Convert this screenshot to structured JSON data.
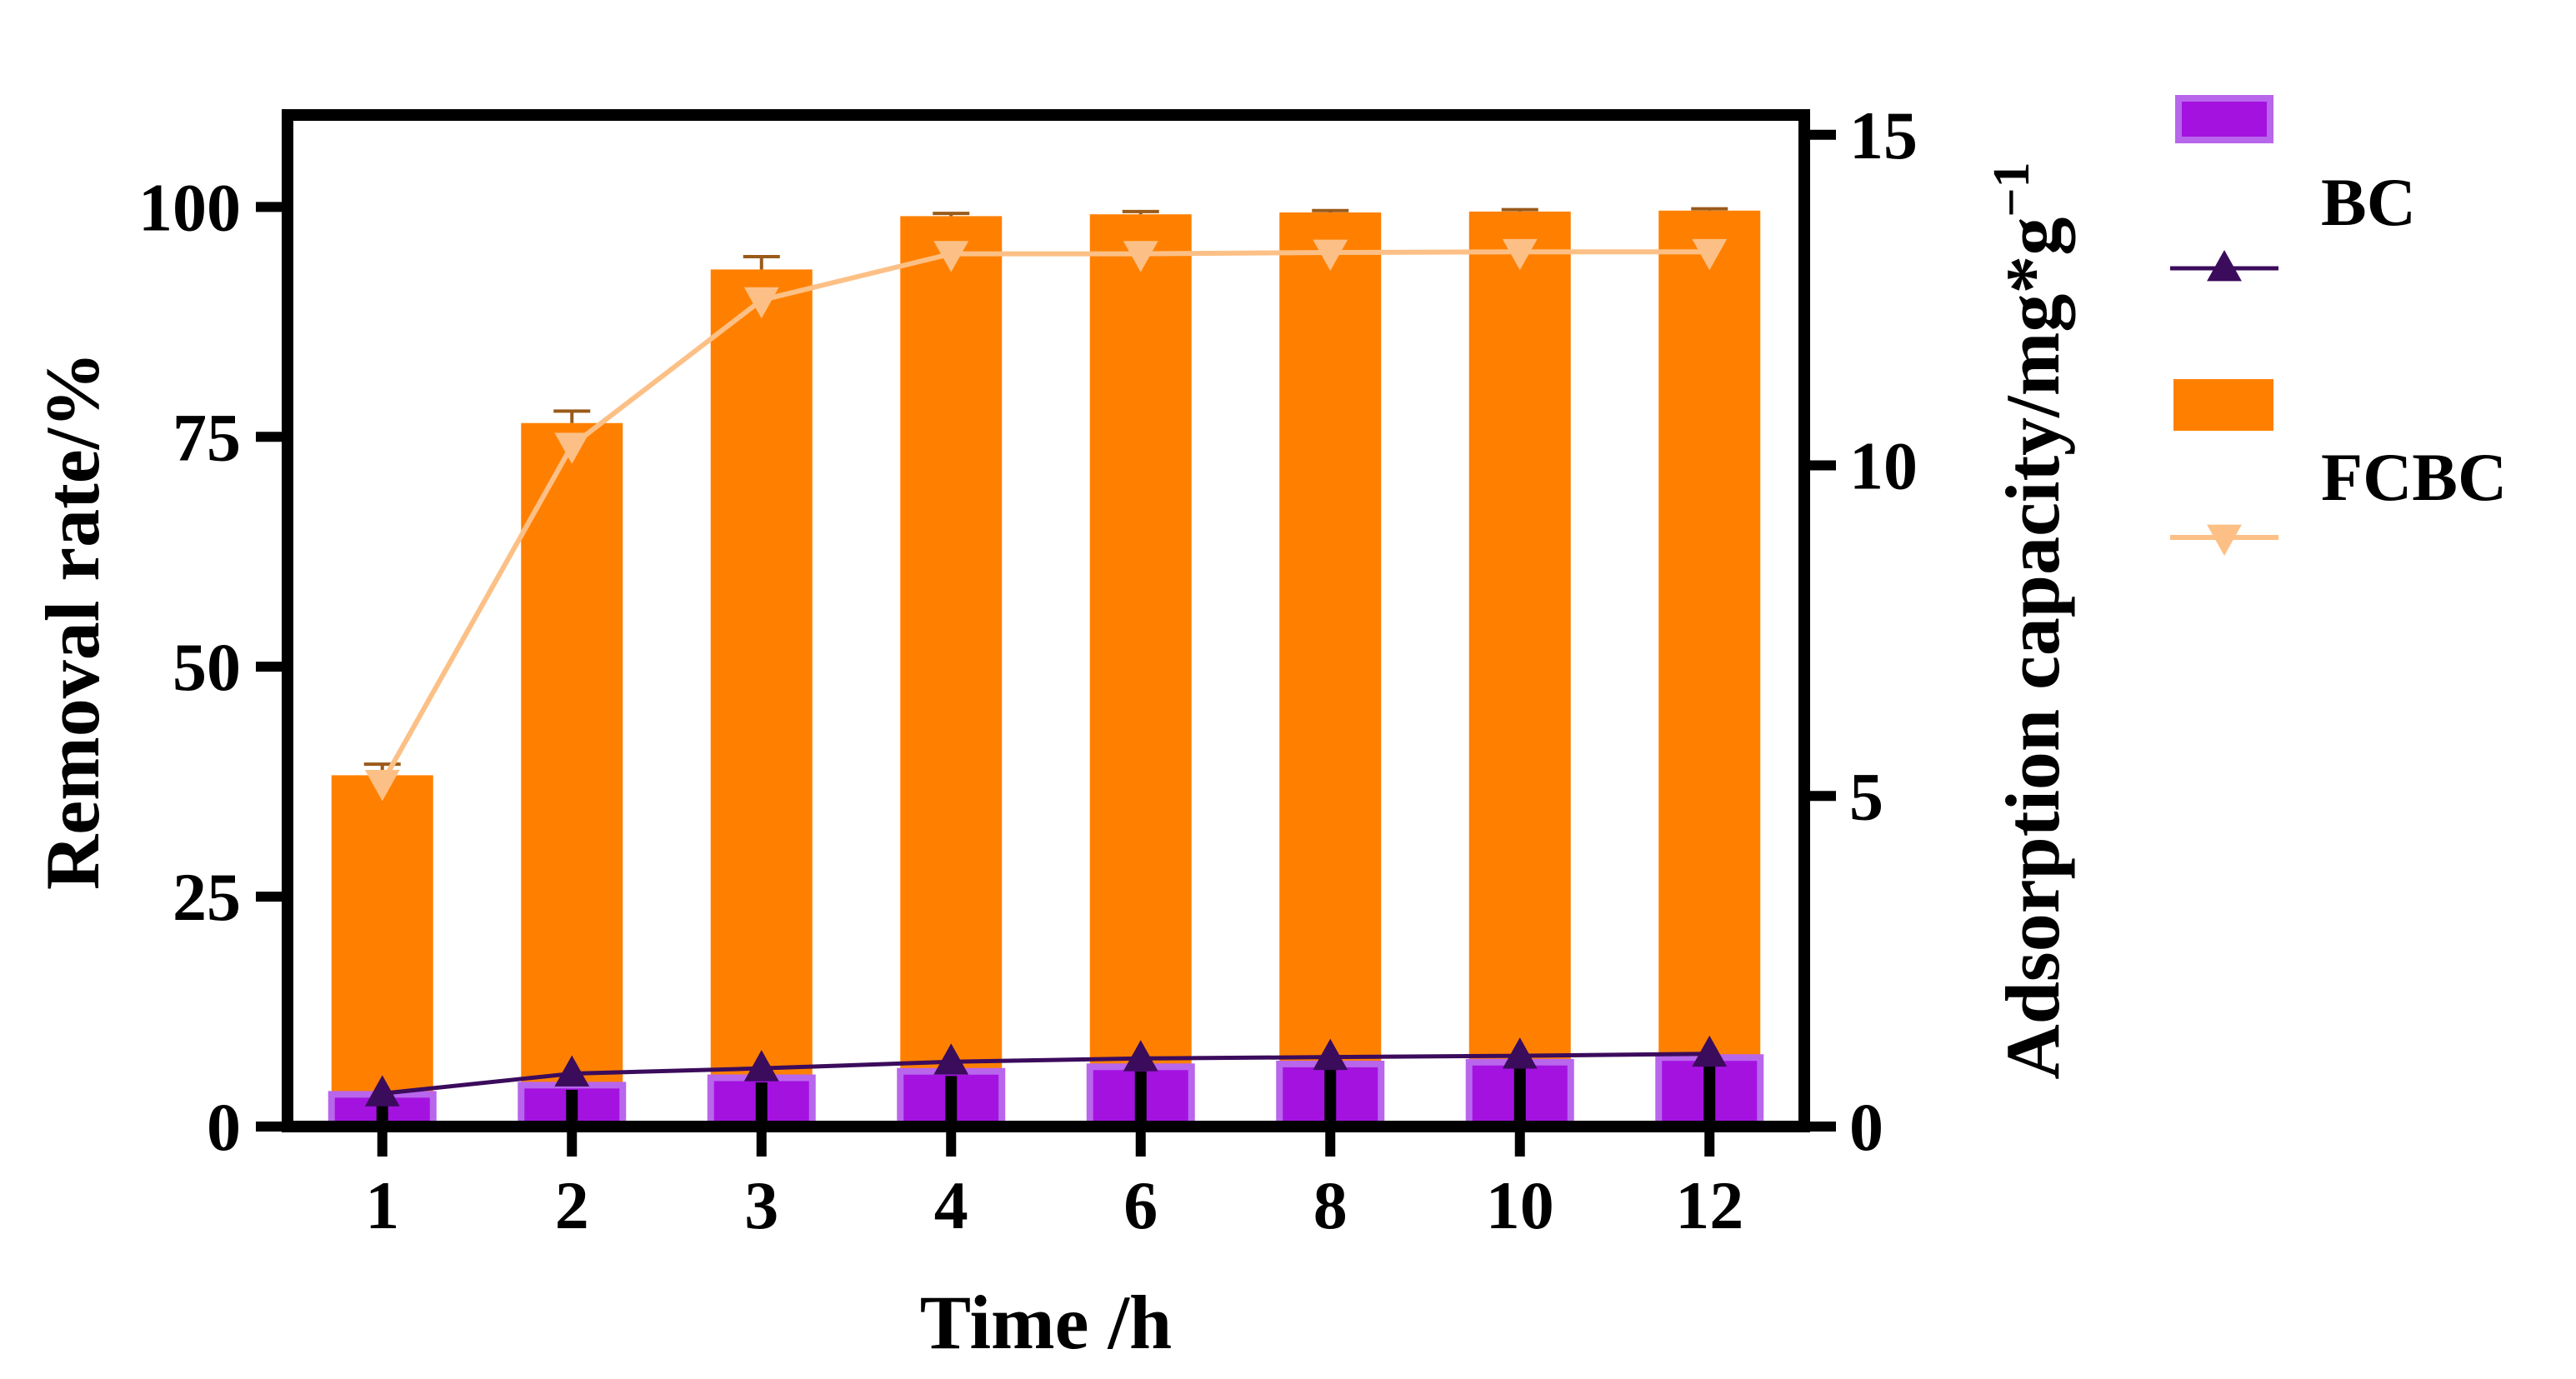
{
  "chart_data": {
    "type": "bar",
    "title": "",
    "xlabel": "Time /h",
    "ylabel": "Removal rate/%",
    "y2label_main": "Adsorption capacity/mg*g",
    "y2label_sup": "−1",
    "categories": [
      "1",
      "2",
      "3",
      "4",
      "6",
      "8",
      "10",
      "12"
    ],
    "ylim": [
      0,
      110
    ],
    "yticks": [
      "0",
      "25",
      "50",
      "75",
      "100"
    ],
    "y2lim": [
      0,
      15.3
    ],
    "y2ticks": [
      "0",
      "5",
      "10",
      "15"
    ],
    "bars": [
      {
        "name": "BC",
        "color": "#a412e0",
        "edge_color": "#b866ec",
        "values": [
          3.5,
          4.5,
          5.3,
          6.0,
          6.5,
          6.8,
          7.0,
          7.5
        ],
        "errors": [
          0.4,
          0.4,
          0.4,
          0.4,
          0.4,
          0.4,
          0.4,
          0.4
        ]
      },
      {
        "name": "FCBC",
        "color": "#ff8000",
        "values": [
          38.2,
          76.5,
          93.2,
          99.0,
          99.2,
          99.4,
          99.5,
          99.6
        ],
        "errors": [
          1.2,
          1.3,
          1.4,
          0.3,
          0.3,
          0.2,
          0.2,
          0.2
        ]
      }
    ],
    "lines": [
      {
        "name": "BC",
        "axis": "right",
        "color": "#3b0b5c",
        "marker": "triangle-up",
        "values": [
          0.5,
          0.8,
          0.88,
          0.98,
          1.03,
          1.05,
          1.07,
          1.1
        ]
      },
      {
        "name": "FCBC",
        "axis": "right",
        "color": "#fcc086",
        "marker": "triangle-down",
        "values": [
          5.2,
          10.3,
          12.5,
          13.2,
          13.2,
          13.22,
          13.23,
          13.23
        ]
      }
    ],
    "legend": {
      "placement": "right",
      "entries": [
        "BC",
        "FCBC"
      ]
    }
  }
}
